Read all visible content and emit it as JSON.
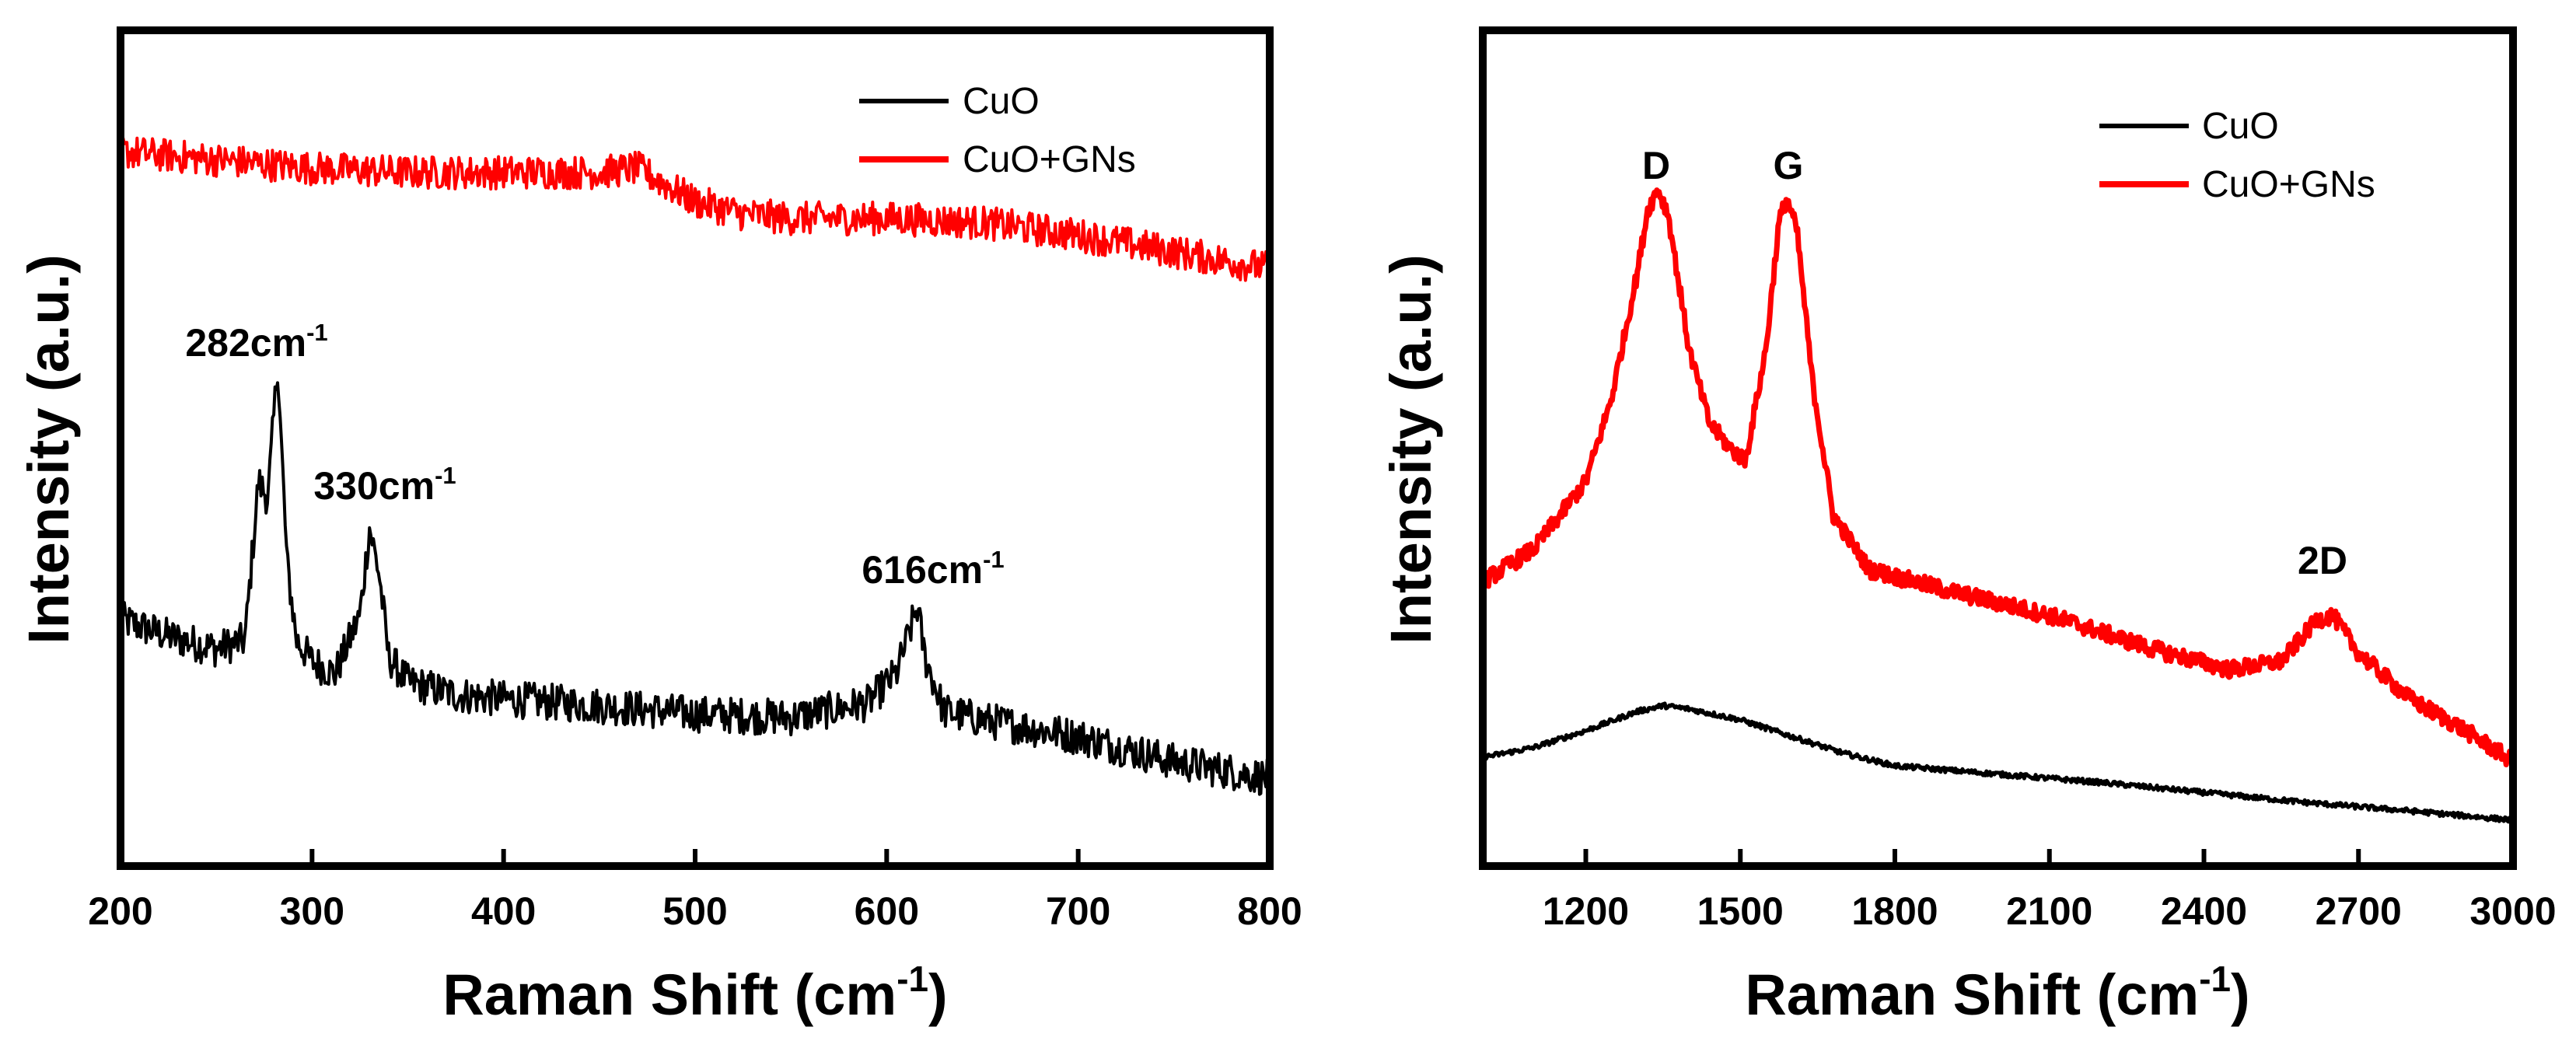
{
  "chart_data": [
    {
      "type": "line",
      "xlabel": "Raman Shift (cm",
      "xlabel_sup": "-1",
      "xlabel_close": ")",
      "ylabel": "Intensity (a.u.)",
      "xlim": [
        200,
        800
      ],
      "ylim": [
        0,
        10
      ],
      "xticks": [
        200,
        300,
        400,
        500,
        600,
        700,
        800
      ],
      "xtick_labels": [
        "200",
        "300",
        "400",
        "500",
        "600",
        "700",
        "800"
      ],
      "legend": {
        "position": "top-right",
        "entries": [
          {
            "label": "CuO",
            "color": "#000000"
          },
          {
            "label": "CuO+GNs",
            "color": "#ff0000"
          }
        ]
      },
      "annotations": [
        {
          "text": "282cm",
          "sup": "-1",
          "x": 282,
          "y": 6.25
        },
        {
          "text": "330cm",
          "sup": "-1",
          "x": 330,
          "y": 4.55
        },
        {
          "text": "616cm",
          "sup": "-1",
          "x": 616,
          "y": 3.45
        }
      ],
      "series": [
        {
          "name": "CuO",
          "color": "#000000",
          "x": [
            200,
            225,
            250,
            265,
            272,
            277,
            282,
            287,
            292,
            300,
            312,
            325,
            330,
            335,
            340,
            350,
            375,
            400,
            450,
            500,
            550,
            590,
            605,
            612,
            616,
            620,
            630,
            650,
            700,
            750,
            800
          ],
          "y": [
            2.95,
            2.75,
            2.6,
            2.7,
            4.6,
            4.4,
            6.0,
            3.6,
            2.7,
            2.45,
            2.3,
            3.0,
            4.05,
            3.5,
            2.5,
            2.2,
            2.05,
            2.0,
            1.92,
            1.82,
            1.78,
            1.95,
            2.3,
            2.8,
            3.1,
            2.5,
            1.85,
            1.75,
            1.55,
            1.25,
            1.05
          ],
          "noise": 0.22
        },
        {
          "name": "CuO+GNs",
          "color": "#ff0000",
          "x": [
            200,
            250,
            300,
            350,
            400,
            450,
            470,
            500,
            525,
            550,
            600,
            650,
            700,
            750,
            800
          ],
          "y": [
            8.55,
            8.45,
            8.35,
            8.3,
            8.3,
            8.3,
            8.35,
            7.95,
            7.8,
            7.75,
            7.75,
            7.7,
            7.55,
            7.35,
            7.15
          ],
          "noise": 0.2
        }
      ]
    },
    {
      "type": "line",
      "xlabel": "Raman Shift (cm",
      "xlabel_sup": "-1",
      "xlabel_close": ")",
      "ylabel": "Intensity (a.u.)",
      "xlim": [
        1000,
        3000
      ],
      "ylim": [
        0,
        10
      ],
      "xticks": [
        1200,
        1500,
        1800,
        2100,
        2400,
        2700,
        3000
      ],
      "xtick_labels": [
        "1200",
        "1500",
        "1800",
        "2100",
        "2400",
        "2700",
        "3000"
      ],
      "legend": {
        "position": "top-right",
        "entries": [
          {
            "label": "CuO",
            "color": "#000000"
          },
          {
            "label": "CuO+GNs",
            "color": "#ff0000"
          }
        ]
      },
      "annotations": [
        {
          "text": "D",
          "x": 1340,
          "y": 8.7
        },
        {
          "text": "G",
          "x": 1600,
          "y": 8.7
        },
        {
          "text": "2D",
          "x": 2630,
          "y": 3.7
        }
      ],
      "series": [
        {
          "name": "CuO",
          "color": "#000000",
          "x": [
            1000,
            1100,
            1200,
            1300,
            1350,
            1400,
            1500,
            1600,
            1700,
            1800,
            2000,
            2200,
            2400,
            2600,
            2800,
            3000
          ],
          "y": [
            1.3,
            1.42,
            1.62,
            1.85,
            1.92,
            1.88,
            1.75,
            1.55,
            1.35,
            1.2,
            1.1,
            1.0,
            0.88,
            0.76,
            0.66,
            0.55
          ],
          "noise": 0.03
        },
        {
          "name": "CuO+GNs",
          "color": "#ff0000",
          "x": [
            1000,
            1100,
            1200,
            1250,
            1300,
            1320,
            1340,
            1360,
            1400,
            1440,
            1480,
            1510,
            1550,
            1575,
            1590,
            1610,
            1640,
            1680,
            1750,
            1900,
            2100,
            2300,
            2450,
            2550,
            2620,
            2650,
            2700,
            2800,
            2900,
            3000
          ],
          "y": [
            3.4,
            3.8,
            4.6,
            5.6,
            7.1,
            7.85,
            8.1,
            7.8,
            6.2,
            5.3,
            5.0,
            4.85,
            6.2,
            7.7,
            8.0,
            7.6,
            5.8,
            4.2,
            3.55,
            3.3,
            3.0,
            2.6,
            2.35,
            2.45,
            2.95,
            3.0,
            2.55,
            2.0,
            1.65,
            1.25
          ],
          "noise": 0.1
        }
      ]
    }
  ]
}
